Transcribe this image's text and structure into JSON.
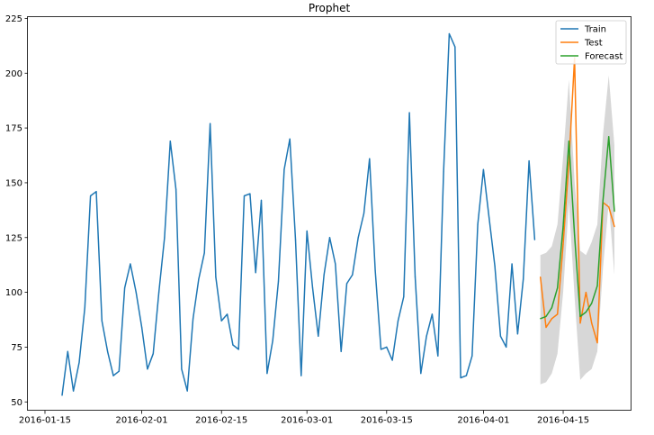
{
  "chart_data": {
    "type": "line",
    "title": "Prophet",
    "xlabel": "",
    "ylabel": "",
    "x_range": [
      "2016-01-12",
      "2016-04-27"
    ],
    "ylim": [
      46,
      226
    ],
    "yticks": [
      50,
      75,
      100,
      125,
      150,
      175,
      200,
      225
    ],
    "xticks": [
      "2016-01-15",
      "2016-02-01",
      "2016-02-15",
      "2016-03-01",
      "2016-03-15",
      "2016-04-01",
      "2016-04-15"
    ],
    "grid": false,
    "legend_position": "top-right",
    "series": [
      {
        "name": "Train",
        "color": "#1f77b4",
        "x": [
          "2016-01-18",
          "2016-01-19",
          "2016-01-20",
          "2016-01-21",
          "2016-01-22",
          "2016-01-23",
          "2016-01-24",
          "2016-01-25",
          "2016-01-26",
          "2016-01-27",
          "2016-01-28",
          "2016-01-29",
          "2016-01-30",
          "2016-01-31",
          "2016-02-01",
          "2016-02-02",
          "2016-02-03",
          "2016-02-04",
          "2016-02-05",
          "2016-02-06",
          "2016-02-07",
          "2016-02-08",
          "2016-02-09",
          "2016-02-10",
          "2016-02-11",
          "2016-02-12",
          "2016-02-13",
          "2016-02-14",
          "2016-02-15",
          "2016-02-16",
          "2016-02-17",
          "2016-02-18",
          "2016-02-19",
          "2016-02-20",
          "2016-02-21",
          "2016-02-22",
          "2016-02-23",
          "2016-02-24",
          "2016-02-25",
          "2016-02-26",
          "2016-02-27",
          "2016-02-28",
          "2016-02-29",
          "2016-03-01",
          "2016-03-02",
          "2016-03-03",
          "2016-03-04",
          "2016-03-05",
          "2016-03-06",
          "2016-03-07",
          "2016-03-08",
          "2016-03-09",
          "2016-03-10",
          "2016-03-11",
          "2016-03-12",
          "2016-03-13",
          "2016-03-14",
          "2016-03-15",
          "2016-03-16",
          "2016-03-17",
          "2016-03-18",
          "2016-03-19",
          "2016-03-20",
          "2016-03-21",
          "2016-03-22",
          "2016-03-23",
          "2016-03-24",
          "2016-03-25",
          "2016-03-26",
          "2016-03-27",
          "2016-03-28",
          "2016-03-29",
          "2016-03-30",
          "2016-03-31",
          "2016-04-01",
          "2016-04-02",
          "2016-04-03",
          "2016-04-04",
          "2016-04-05",
          "2016-04-06",
          "2016-04-07",
          "2016-04-08",
          "2016-04-09",
          "2016-04-10"
        ],
        "values": [
          53,
          73,
          55,
          68,
          93,
          144,
          146,
          87,
          73,
          62,
          64,
          102,
          113,
          100,
          84,
          65,
          72,
          100,
          125,
          169,
          147,
          65,
          55,
          88,
          106,
          118,
          177,
          107,
          87,
          90,
          76,
          74,
          144,
          145,
          109,
          142,
          63,
          78,
          105,
          156,
          170,
          124,
          62,
          128,
          102,
          80,
          108,
          125,
          113,
          73,
          104,
          108,
          125,
          136,
          161,
          110,
          74,
          75,
          69,
          87,
          98,
          182,
          107,
          63,
          80,
          90,
          71,
          155,
          218,
          212,
          61,
          62,
          71,
          131,
          156,
          134,
          112,
          80,
          75,
          113,
          81,
          106,
          160,
          124
        ]
      },
      {
        "name": "Test",
        "color": "#ff7f0e",
        "x": [
          "2016-04-11",
          "2016-04-12",
          "2016-04-13",
          "2016-04-14",
          "2016-04-15",
          "2016-04-16",
          "2016-04-17",
          "2016-04-18",
          "2016-04-19",
          "2016-04-20",
          "2016-04-21",
          "2016-04-22",
          "2016-04-23",
          "2016-04-24"
        ],
        "values": [
          107,
          84,
          88,
          90,
          122,
          159,
          207,
          86,
          100,
          86,
          77,
          141,
          139,
          130
        ]
      },
      {
        "name": "Forecast",
        "color": "#2ca02c",
        "x": [
          "2016-04-11",
          "2016-04-12",
          "2016-04-13",
          "2016-04-14",
          "2016-04-15",
          "2016-04-16",
          "2016-04-17",
          "2016-04-18",
          "2016-04-19",
          "2016-04-20",
          "2016-04-21",
          "2016-04-22",
          "2016-04-23",
          "2016-04-24"
        ],
        "values": [
          88,
          89,
          93,
          102,
          130,
          169,
          126,
          89,
          91,
          95,
          103,
          142,
          171,
          137
        ]
      }
    ],
    "interval": {
      "color": "#d3d3d3",
      "x": [
        "2016-04-11",
        "2016-04-12",
        "2016-04-13",
        "2016-04-14",
        "2016-04-15",
        "2016-04-16",
        "2016-04-17",
        "2016-04-18",
        "2016-04-19",
        "2016-04-20",
        "2016-04-21",
        "2016-04-22",
        "2016-04-23",
        "2016-04-24"
      ],
      "lower": [
        58,
        59,
        63,
        72,
        100,
        141,
        98,
        60,
        63,
        65,
        73,
        111,
        141,
        108
      ],
      "upper": [
        117,
        118,
        121,
        131,
        162,
        197,
        151,
        119,
        117,
        123,
        131,
        172,
        199,
        167
      ]
    }
  }
}
